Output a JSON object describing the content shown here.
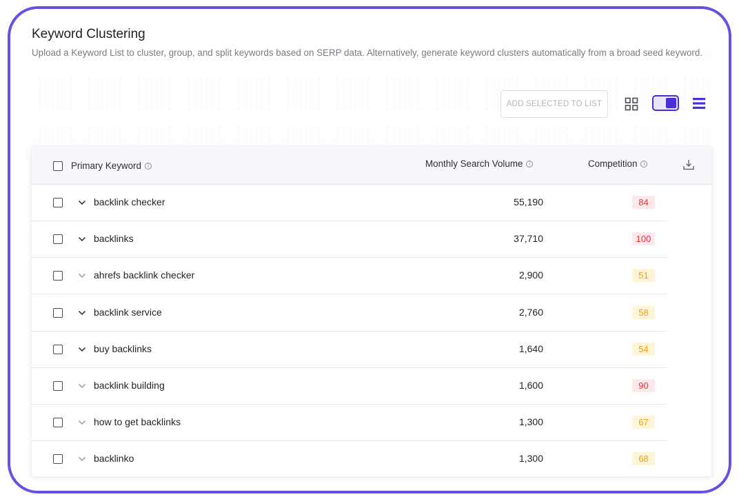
{
  "header": {
    "title": "Keyword Clustering",
    "subtitle": "Upload a Keyword List to cluster, group, and split keywords based on SERP data. Alternatively, generate keyword clusters automatically from a broad seed keyword."
  },
  "toolbar": {
    "add_selected_label": "ADD SELECTED TO LIST",
    "grid_icon": "grid-view-icon",
    "toggle_icon": "view-toggle",
    "list_icon": "list-view-icon"
  },
  "table": {
    "columns": {
      "keyword": "Primary Keyword",
      "volume": "Monthly Search Volume",
      "competition": "Competition"
    },
    "rows": [
      {
        "keyword": "backlink checker",
        "volume": "55,190",
        "competition": "84",
        "level": "high",
        "expanded_dark": true
      },
      {
        "keyword": "backlinks",
        "volume": "37,710",
        "competition": "100",
        "level": "high",
        "expanded_dark": true
      },
      {
        "keyword": "ahrefs backlink checker",
        "volume": "2,900",
        "competition": "51",
        "level": "medium",
        "expanded_dark": false
      },
      {
        "keyword": "backlink service",
        "volume": "2,760",
        "competition": "58",
        "level": "medium",
        "expanded_dark": true
      },
      {
        "keyword": "buy backlinks",
        "volume": "1,640",
        "competition": "54",
        "level": "medium",
        "expanded_dark": true
      },
      {
        "keyword": "backlink building",
        "volume": "1,600",
        "competition": "90",
        "level": "high",
        "expanded_dark": false
      },
      {
        "keyword": "how to get backlinks",
        "volume": "1,300",
        "competition": "67",
        "level": "medium",
        "expanded_dark": false
      },
      {
        "keyword": "backlinko",
        "volume": "1,300",
        "competition": "68",
        "level": "medium",
        "expanded_dark": false
      }
    ]
  },
  "colors": {
    "accent": "#4a2fd6",
    "frame": "#6b4fe0",
    "high_bg": "#fde9ea",
    "high_text": "#e8333e",
    "medium_bg": "#fff4d6",
    "medium_text": "#e6a417"
  }
}
